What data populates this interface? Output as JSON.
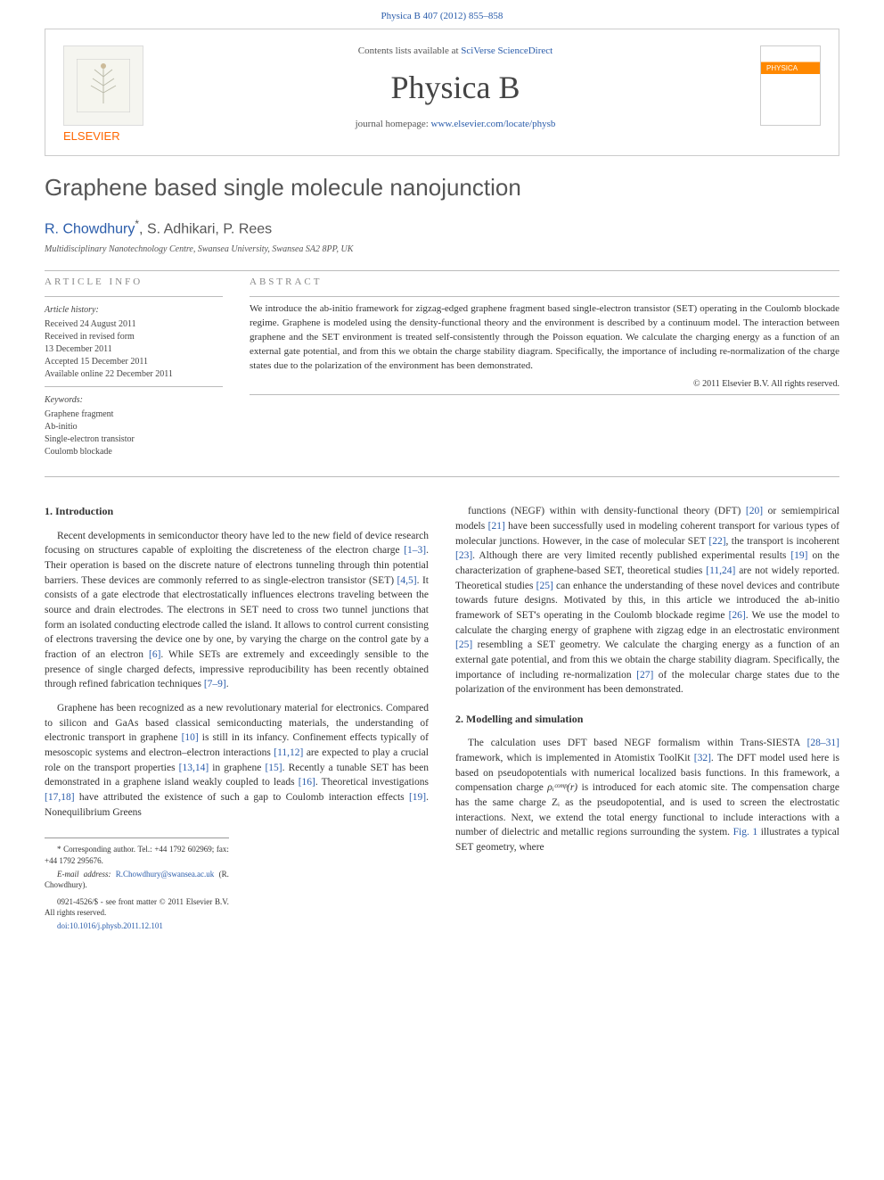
{
  "header": {
    "citation": "Physica B 407 (2012) 855–858"
  },
  "banner": {
    "contents_prefix": "Contents lists available at ",
    "contents_link": "SciVerse ScienceDirect",
    "journal_name": "Physica B",
    "homepage_prefix": "journal homepage: ",
    "homepage_url": "www.elsevier.com/locate/physb",
    "publisher_name": "ELSEVIER",
    "cover_label": "PHYSICA"
  },
  "article": {
    "title": "Graphene based single molecule nanojunction",
    "authors_html": "R. Chowdhury",
    "corr_mark": "*",
    "authors_rest": ", S. Adhikari, P. Rees",
    "affiliation": "Multidisciplinary Nanotechnology Centre, Swansea University, Swansea SA2 8PP, UK"
  },
  "info": {
    "heading": "ARTICLE INFO",
    "history_label": "Article history:",
    "received": "Received 24 August 2011",
    "revised": "Received in revised form",
    "revised_date": "13 December 2011",
    "accepted": "Accepted 15 December 2011",
    "online": "Available online 22 December 2011",
    "keywords_label": "Keywords:",
    "kw1": "Graphene fragment",
    "kw2": "Ab-initio",
    "kw3": "Single-electron transistor",
    "kw4": "Coulomb blockade"
  },
  "abstract": {
    "heading": "ABSTRACT",
    "text": "We introduce the ab-initio framework for zigzag-edged graphene fragment based single-electron transistor (SET) operating in the Coulomb blockade regime. Graphene is modeled using the density-functional theory and the environment is described by a continuum model. The interaction between graphene and the SET environment is treated self-consistently through the Poisson equation. We calculate the charging energy as a function of an external gate potential, and from this we obtain the charge stability diagram. Specifically, the importance of including re-normalization of the charge states due to the polarization of the environment has been demonstrated.",
    "copyright": "© 2011 Elsevier B.V. All rights reserved."
  },
  "sections": {
    "s1_title": "1.  Introduction",
    "s1_p1": "Recent developments in semiconductor theory have led to the new field of device research focusing on structures capable of exploiting the discreteness of the electron charge [1–3]. Their operation is based on the discrete nature of electrons tunneling through thin potential barriers. These devices are commonly referred to as single-electron transistor (SET) [4,5]. It consists of a gate electrode that electrostatically influences electrons traveling between the source and drain electrodes. The electrons in SET need to cross two tunnel junctions that form an isolated conducting electrode called the island. It allows to control current consisting of electrons traversing the device one by one, by varying the charge on the control gate by a fraction of an electron [6]. While SETs are extremely and exceedingly sensible to the presence of single charged defects, impressive reproducibility has been recently obtained through refined fabrication techniques [7–9].",
    "s1_p2": "Graphene has been recognized as a new revolutionary material for electronics. Compared to silicon and GaAs based classical semiconducting materials, the understanding of electronic transport in graphene [10] is still in its infancy. Confinement effects typically of mesoscopic systems and electron–electron interactions [11,12] are expected to play a crucial role on the transport properties [13,14] in graphene [15]. Recently a tunable SET has been demonstrated in a graphene island weakly coupled to leads [16]. Theoretical investigations [17,18] have attributed the existence of such a gap to Coulomb interaction effects [19]. Nonequilibrium Greens",
    "s1_p3": "functions (NEGF) within with density-functional theory (DFT) [20] or semiempirical models [21] have been successfully used in modeling coherent transport for various types of molecular junctions. However, in the case of molecular SET [22], the transport is incoherent [23]. Although there are very limited recently published experimental results [19] on the characterization of graphene-based SET, theoretical studies [11,24] are not widely reported. Theoretical studies [25] can enhance the understanding of these novel devices and contribute towards future designs. Motivated by this, in this article we introduced the ab-initio framework of SET's operating in the Coulomb blockade regime [26]. We use the model to calculate the charging energy of graphene with zigzag edge in an electrostatic environment [25] resembling a SET geometry. We calculate the charging energy as a function of an external gate potential, and from this we obtain the charge stability diagram. Specifically, the importance of including re-normalization [27] of the molecular charge states due to the polarization of the environment has been demonstrated.",
    "s2_title": "2.  Modelling and simulation",
    "s2_p1a": "The calculation uses DFT based NEGF formalism within Trans-SIESTA [28–31] framework, which is implemented in Atomistix ToolKit [32]. The DFT model used here is based on pseudopotentials with numerical localized basis functions. In this framework, a compensation charge ",
    "s2_p1_sym": "ρᵢᶜᵒᵐᵖ(r)",
    "s2_p1b": " is introduced for each atomic site. The compensation charge has the same charge Zᵢ as the pseudopotential, and is used to screen the electrostatic interactions. Next, we extend the total energy functional to include interactions with a number of dielectric and metallic regions surrounding the system. ",
    "s2_fig_ref": "Fig. 1",
    "s2_p1c": " illustrates a typical SET geometry, where"
  },
  "footnotes": {
    "corr": "* Corresponding author. Tel.: +44 1792 602969; fax: +44 1792 295676.",
    "email_label": "E-mail address:",
    "email": "R.Chowdhury@swansea.ac.uk",
    "email_who": "(R. Chowdhury).",
    "issn": "0921-4526/$ - see front matter © 2011 Elsevier B.V. All rights reserved.",
    "doi": "doi:10.1016/j.physb.2011.12.101"
  },
  "refs": {
    "r1_3": "[1–3]",
    "r4_5": "[4,5]",
    "r6": "[6]",
    "r7_9": "[7–9]",
    "r10": "[10]",
    "r11_12": "[11,12]",
    "r13_14": "[13,14]",
    "r15": "[15]",
    "r16": "[16]",
    "r17_18": "[17,18]",
    "r19": "[19]",
    "r20": "[20]",
    "r21": "[21]",
    "r22": "[22]",
    "r23": "[23]",
    "r11_24": "[11,24]",
    "r25": "[25]",
    "r26": "[26]",
    "r27": "[27]",
    "r28_31": "[28–31]",
    "r32": "[32]"
  },
  "colors": {
    "link": "#2a5caa",
    "elsevier_orange": "#ff6600",
    "text": "#333333",
    "muted": "#888888"
  }
}
